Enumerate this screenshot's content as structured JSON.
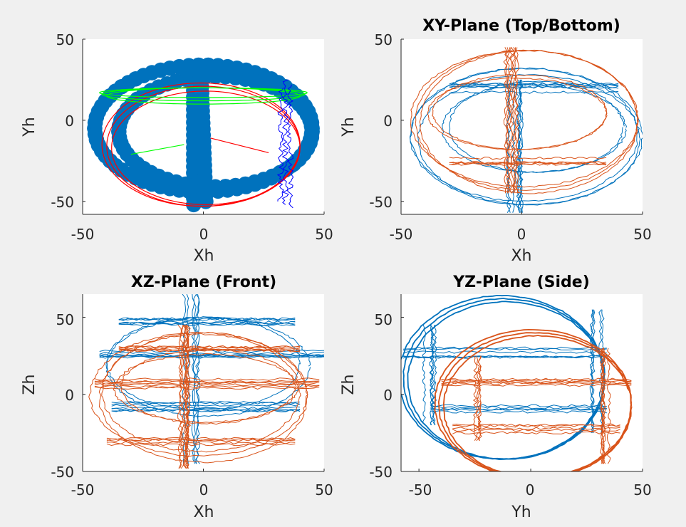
{
  "colors": {
    "figure_background": "#f0f0f0",
    "axes_background": "#ffffff",
    "axis_line": "#262626",
    "blue": "#0072bd",
    "orange": "#d95319",
    "pure_red": "#ff0000",
    "pure_green": "#00ff00",
    "pure_blue": "#0000ff"
  },
  "chart_data": [
    {
      "id": "panel1",
      "type": "scatter",
      "title": "",
      "xlabel": "Xh",
      "ylabel": "Yh",
      "xlim": [
        -50,
        50
      ],
      "ylim": [
        -58,
        50
      ],
      "xticks": [
        -50,
        0,
        50
      ],
      "yticks": [
        -50,
        0,
        50
      ],
      "grid": false,
      "legend": "none",
      "series": [
        {
          "kind": "markers",
          "color": "blue",
          "marker_size_data": 3.2,
          "paths": [
            {
              "shape": "ellipse",
              "cx": 0,
              "cy": -5,
              "rx": 45,
              "ry": 39,
              "n": 70
            },
            {
              "shape": "line",
              "x0": -4,
              "y0": 30,
              "x1": -4,
              "y1": -52,
              "n": 22
            },
            {
              "shape": "line",
              "x0": -1,
              "y0": 28,
              "x1": 1,
              "y1": -50,
              "n": 22
            },
            {
              "shape": "ellipse",
              "cx": 5,
              "cy": -7,
              "rx": 40,
              "ry": 34,
              "n": 60
            }
          ]
        },
        {
          "kind": "loops",
          "color": "pure_red",
          "width": 1.2,
          "loops": [
            {
              "cx": 0,
              "cy": -16,
              "rx": 40,
              "ry": 37
            },
            {
              "cx": 1,
              "cy": -17,
              "rx": 39,
              "ry": 35
            },
            {
              "cx": -1,
              "cy": -15,
              "rx": 41,
              "ry": 38
            }
          ],
          "arc": [
            0.0,
            1.0
          ]
        },
        {
          "kind": "loops",
          "color": "pure_green",
          "width": 1.2,
          "loops": [
            {
              "cx": 0,
              "cy": 16,
              "rx": 42,
              "ry": 4
            },
            {
              "cx": 0,
              "cy": 15,
              "rx": 40,
              "ry": 5
            },
            {
              "cx": 0,
              "cy": 17,
              "rx": 43,
              "ry": 3
            }
          ],
          "arc": [
            0.0,
            1.0
          ]
        },
        {
          "kind": "wiggle",
          "color": "pure_blue",
          "width": 1.0,
          "lines": [
            {
              "x": 34,
              "y0": 25,
              "y1": -52
            },
            {
              "x": 36,
              "y0": 22,
              "y1": -54
            },
            {
              "x": 32,
              "y0": 20,
              "y1": -50
            }
          ]
        },
        {
          "kind": "segments",
          "segments": [
            {
              "color": "pure_green",
              "x0": -30,
              "y0": -21,
              "x1": -8,
              "y1": -15
            },
            {
              "color": "pure_red",
              "x0": 3,
              "y0": -11,
              "x1": 27,
              "y1": -20
            }
          ]
        }
      ]
    },
    {
      "id": "panel2",
      "type": "line",
      "title": "XY-Plane (Top/Bottom)",
      "xlabel": "Xh",
      "ylabel": "Yh",
      "xlim": [
        -50,
        50
      ],
      "ylim": [
        -58,
        50
      ],
      "xticks": [
        -50,
        0,
        50
      ],
      "yticks": [
        -50,
        0,
        50
      ],
      "grid": false,
      "legend": "none",
      "series": [
        {
          "kind": "loops",
          "color": "blue",
          "width": 1.0,
          "jitter": 0.9,
          "loops": [
            {
              "cx": 2,
              "cy": -10,
              "rx": 48,
              "ry": 42
            },
            {
              "cx": 3,
              "cy": -12,
              "rx": 46,
              "ry": 40
            },
            {
              "cx": 1,
              "cy": -9,
              "rx": 47,
              "ry": 41
            },
            {
              "cx": 6,
              "cy": -4,
              "rx": 36,
              "ry": 28
            },
            {
              "cx": 5,
              "cy": -5,
              "rx": 38,
              "ry": 27
            }
          ]
        },
        {
          "kind": "band",
          "color": "blue",
          "width": 1.0,
          "orient": "v",
          "pos": -3,
          "from": 25,
          "to": -57,
          "count": 8,
          "spread": 3
        },
        {
          "kind": "band",
          "color": "blue",
          "width": 1.0,
          "orient": "h",
          "pos": 20,
          "from": -30,
          "to": 40,
          "count": 6,
          "spread": 3
        },
        {
          "kind": "loops",
          "color": "orange",
          "width": 1.0,
          "jitter": 0.8,
          "loops": [
            {
              "cx": 2,
              "cy": 0,
              "rx": 46,
              "ry": 43
            },
            {
              "cx": 3,
              "cy": -1,
              "rx": 45,
              "ry": 44
            },
            {
              "cx": 1,
              "cy": 1,
              "rx": 47,
              "ry": 42
            },
            {
              "cx": -2,
              "cy": 4,
              "rx": 37,
              "ry": 22
            },
            {
              "cx": -1,
              "cy": 5,
              "rx": 36,
              "ry": 23
            }
          ]
        },
        {
          "kind": "band",
          "color": "orange",
          "width": 1.0,
          "orient": "v",
          "pos": -4,
          "from": 45,
          "to": -45,
          "count": 8,
          "spread": 3
        },
        {
          "kind": "band",
          "color": "orange",
          "width": 1.0,
          "orient": "h",
          "pos": -26,
          "from": -30,
          "to": 35,
          "count": 5,
          "spread": 3
        }
      ]
    },
    {
      "id": "panel3",
      "type": "line",
      "title": "XZ-Plane (Front)",
      "xlabel": "Xh",
      "ylabel": "Zh",
      "xlim": [
        -50,
        50
      ],
      "ylim": [
        -50,
        65
      ],
      "xticks": [
        -50,
        0,
        50
      ],
      "yticks": [
        -50,
        0,
        50
      ],
      "grid": false,
      "legend": "none",
      "series": [
        {
          "kind": "band",
          "color": "blue",
          "width": 1.0,
          "orient": "h",
          "pos": 47,
          "from": -35,
          "to": 38,
          "count": 7,
          "spread": 2
        },
        {
          "kind": "band",
          "color": "blue",
          "width": 1.0,
          "orient": "h",
          "pos": 27,
          "from": -43,
          "to": 50,
          "count": 7,
          "spread": 3
        },
        {
          "kind": "band",
          "color": "blue",
          "width": 1.0,
          "orient": "h",
          "pos": -8,
          "from": -38,
          "to": 40,
          "count": 7,
          "spread": 3
        },
        {
          "kind": "band",
          "color": "blue",
          "width": 1.0,
          "orient": "v",
          "pos": -5,
          "from": 65,
          "to": -45,
          "count": 6,
          "spread": 3
        },
        {
          "kind": "loops",
          "color": "blue",
          "width": 1.0,
          "jitter": 1.0,
          "loops": [
            {
              "cx": 0,
              "cy": 20,
              "rx": 40,
              "ry": 30
            },
            {
              "cx": 2,
              "cy": 18,
              "rx": 42,
              "ry": 32
            }
          ]
        },
        {
          "kind": "loops",
          "color": "orange",
          "width": 1.0,
          "jitter": 1.0,
          "loops": [
            {
              "cx": -2,
              "cy": 0,
              "rx": 45,
              "ry": 40
            },
            {
              "cx": 0,
              "cy": -2,
              "rx": 43,
              "ry": 42
            },
            {
              "cx": -1,
              "cy": 1,
              "rx": 41,
              "ry": 38
            },
            {
              "cx": 2,
              "cy": 5,
              "rx": 36,
              "ry": 24
            },
            {
              "cx": 1,
              "cy": 4,
              "rx": 38,
              "ry": 22
            }
          ]
        },
        {
          "kind": "band",
          "color": "orange",
          "width": 1.0,
          "orient": "h",
          "pos": 30,
          "from": -35,
          "to": 40,
          "count": 6,
          "spread": 2
        },
        {
          "kind": "band",
          "color": "orange",
          "width": 1.0,
          "orient": "h",
          "pos": 8,
          "from": -45,
          "to": 48,
          "count": 7,
          "spread": 4
        },
        {
          "kind": "band",
          "color": "orange",
          "width": 1.0,
          "orient": "h",
          "pos": -30,
          "from": -40,
          "to": 38,
          "count": 5,
          "spread": 3
        },
        {
          "kind": "band",
          "color": "orange",
          "width": 1.0,
          "orient": "v",
          "pos": -8,
          "from": 45,
          "to": -48,
          "count": 9,
          "spread": 3
        }
      ]
    },
    {
      "id": "panel4",
      "type": "line",
      "title": "YZ-Plane (Side)",
      "xlabel": "Yh",
      "ylabel": "Zh",
      "xlim": [
        -58,
        50
      ],
      "ylim": [
        -50,
        65
      ],
      "xticks": [
        -50,
        0,
        50
      ],
      "yticks": [
        -50,
        0,
        50
      ],
      "grid": false,
      "legend": "none",
      "series": [
        {
          "kind": "loops",
          "color": "blue",
          "width": 1.8,
          "jitter": 0.5,
          "loops": [
            {
              "cx": -12,
              "cy": 10,
              "rx": 45,
              "ry": 52
            },
            {
              "cx": -11,
              "cy": 9,
              "rx": 44,
              "ry": 51
            },
            {
              "cx": -13,
              "cy": 11,
              "rx": 46,
              "ry": 53
            }
          ]
        },
        {
          "kind": "band",
          "color": "blue",
          "width": 1.0,
          "orient": "h",
          "pos": 28,
          "from": -57,
          "to": 34,
          "count": 6,
          "spread": 4
        },
        {
          "kind": "band",
          "color": "blue",
          "width": 1.0,
          "orient": "h",
          "pos": -10,
          "from": -45,
          "to": 34,
          "count": 5,
          "spread": 3
        },
        {
          "kind": "band",
          "color": "blue",
          "width": 1.0,
          "orient": "v",
          "pos": -45,
          "from": 45,
          "to": -20,
          "count": 5,
          "spread": 3
        },
        {
          "kind": "band",
          "color": "blue",
          "width": 1.0,
          "orient": "v",
          "pos": 30,
          "from": 55,
          "to": -25,
          "count": 5,
          "spread": 3
        },
        {
          "kind": "loops",
          "color": "orange",
          "width": 1.8,
          "jitter": 0.5,
          "loops": [
            {
              "cx": 2,
              "cy": -7,
              "rx": 43,
              "ry": 47
            },
            {
              "cx": 3,
              "cy": -8,
              "rx": 42,
              "ry": 46
            },
            {
              "cx": 1,
              "cy": -6,
              "rx": 44,
              "ry": 48
            }
          ]
        },
        {
          "kind": "band",
          "color": "orange",
          "width": 1.0,
          "orient": "h",
          "pos": 8,
          "from": -40,
          "to": 45,
          "count": 6,
          "spread": 3
        },
        {
          "kind": "band",
          "color": "orange",
          "width": 1.0,
          "orient": "h",
          "pos": -22,
          "from": -35,
          "to": 40,
          "count": 5,
          "spread": 3
        },
        {
          "kind": "band",
          "color": "orange",
          "width": 1.0,
          "orient": "v",
          "pos": 33,
          "from": 30,
          "to": -45,
          "count": 6,
          "spread": 3
        },
        {
          "kind": "band",
          "color": "orange",
          "width": 1.0,
          "orient": "v",
          "pos": -25,
          "from": 25,
          "to": -30,
          "count": 4,
          "spread": 3
        }
      ]
    }
  ]
}
